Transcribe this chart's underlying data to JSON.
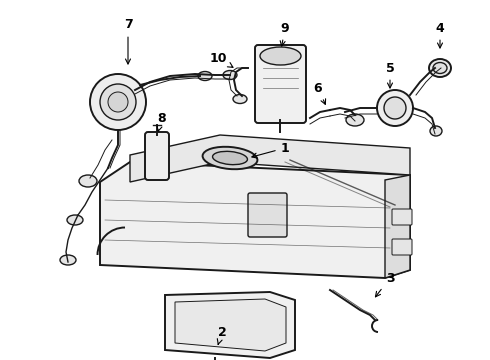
{
  "background_color": "#ffffff",
  "line_color": "#1a1a1a",
  "label_color": "#000000",
  "figure_width": 4.9,
  "figure_height": 3.6,
  "dpi": 100
}
